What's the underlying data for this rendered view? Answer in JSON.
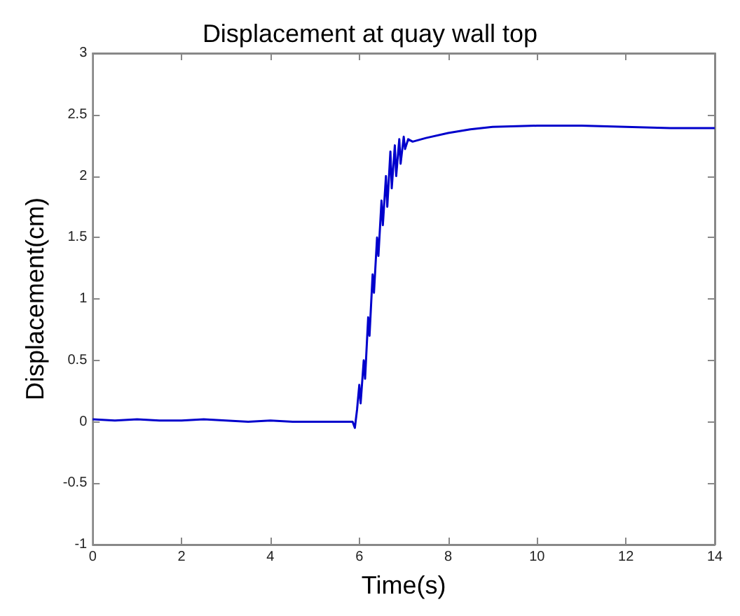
{
  "chart_data": {
    "type": "line",
    "title": "Displacement at quay wall top",
    "xlabel": "Time(s)",
    "ylabel": "Displacement(cm)",
    "xlim": [
      0,
      14
    ],
    "ylim": [
      -1,
      3
    ],
    "xticks": [
      0,
      2,
      4,
      6,
      8,
      10,
      12,
      14
    ],
    "yticks": [
      -1,
      -0.5,
      0,
      0.5,
      1,
      1.5,
      2,
      2.5,
      3
    ],
    "grid": false,
    "marker": "none",
    "line_style": "solid",
    "series": [
      {
        "color": "#0000cc",
        "x": [
          0,
          0.5,
          1,
          1.5,
          2,
          2.5,
          3,
          3.5,
          4,
          4.5,
          5,
          5.5,
          5.85,
          5.9,
          5.95,
          6.0,
          6.03,
          6.1,
          6.13,
          6.2,
          6.23,
          6.3,
          6.33,
          6.4,
          6.43,
          6.5,
          6.53,
          6.6,
          6.63,
          6.7,
          6.73,
          6.8,
          6.83,
          6.9,
          6.93,
          7.0,
          7.03,
          7.1,
          7.2,
          7.5,
          8,
          8.5,
          9,
          10,
          11,
          12,
          13,
          14
        ],
        "values": [
          0.02,
          0.01,
          0.02,
          0.01,
          0.01,
          0.02,
          0.01,
          0.0,
          0.01,
          0.0,
          0.0,
          0.0,
          0.0,
          -0.05,
          0.1,
          0.3,
          0.15,
          0.5,
          0.35,
          0.85,
          0.7,
          1.2,
          1.05,
          1.5,
          1.35,
          1.8,
          1.6,
          2.0,
          1.75,
          2.2,
          1.9,
          2.25,
          2.0,
          2.3,
          2.1,
          2.32,
          2.22,
          2.3,
          2.28,
          2.31,
          2.35,
          2.38,
          2.4,
          2.41,
          2.41,
          2.4,
          2.39,
          2.39
        ]
      }
    ]
  }
}
